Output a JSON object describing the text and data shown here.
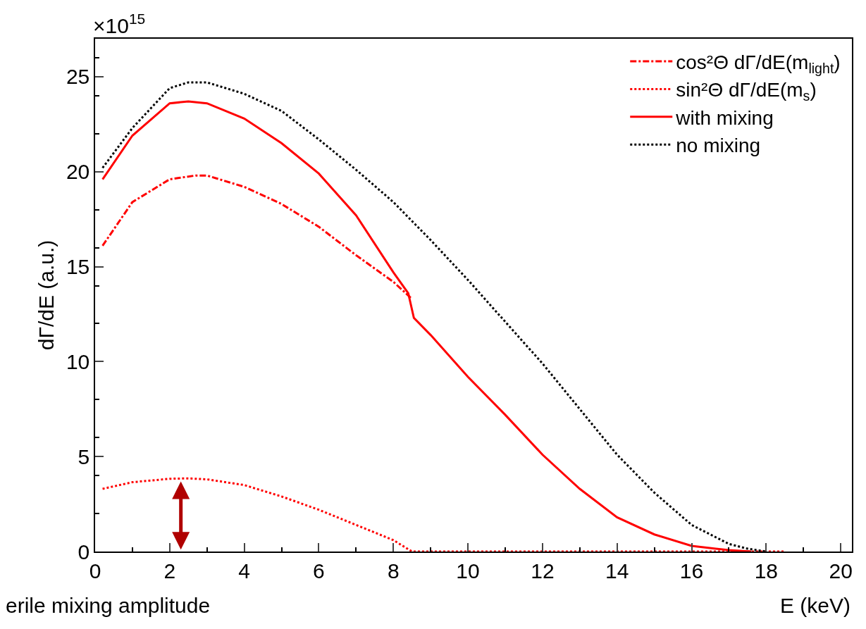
{
  "chart_data": {
    "type": "line",
    "xlabel": "E (keV)",
    "ylabel": "dΓ/dE (a.u.)",
    "xlim": [
      0,
      20.3
    ],
    "ylim": [
      0,
      27
    ],
    "xticks": [
      0,
      2,
      4,
      6,
      8,
      10,
      12,
      14,
      16,
      18,
      20
    ],
    "yticks": [
      0,
      5,
      10,
      15,
      20,
      25
    ],
    "legend": "top right",
    "marker": "none",
    "annotations": [
      "×10$^{15}$",
      "erile mixing amplitude"
    ],
    "series": [
      {
        "name": "cos²Θ dΓ/dE(m$_{light}$)",
        "color": "#ff0000",
        "line_style": "dashdot",
        "x": [
          0.2,
          1,
          2,
          2.7,
          3,
          4,
          5,
          6,
          7,
          8,
          8.5
        ],
        "values": [
          16.1,
          18.4,
          19.6,
          19.8,
          19.8,
          19.2,
          18.3,
          17.1,
          15.6,
          14.2,
          13.3
        ]
      },
      {
        "name": "sin²Θ dΓ/dE(m$_{s}$)",
        "color": "#ff0000",
        "line_style": "dotted",
        "x": [
          0.2,
          1,
          2,
          2.5,
          3,
          4,
          5,
          6,
          7,
          8,
          8.5,
          8.6,
          18.5
        ],
        "values": [
          3.3,
          3.65,
          3.83,
          3.85,
          3.8,
          3.5,
          2.9,
          2.2,
          1.4,
          0.6,
          0,
          0,
          0
        ]
      },
      {
        "name": "with mixing",
        "color": "#ff0000",
        "line_style": "solid",
        "x": [
          0.2,
          1,
          2,
          2.5,
          3,
          4,
          5,
          6,
          7,
          8,
          8.4,
          8.55,
          9,
          10,
          11,
          12,
          13,
          14,
          15,
          16,
          17,
          17.6
        ],
        "values": [
          19.6,
          21.9,
          23.6,
          23.7,
          23.6,
          22.8,
          21.5,
          19.9,
          17.7,
          14.7,
          13.6,
          12.3,
          11.4,
          9.2,
          7.2,
          5.1,
          3.3,
          1.8,
          0.9,
          0.3,
          0.07,
          0
        ]
      },
      {
        "name": "no mixing",
        "color": "#000000",
        "line_style": "dotted",
        "x": [
          0.2,
          1,
          2,
          2.5,
          3,
          4,
          5,
          6,
          7,
          8,
          9,
          10,
          11,
          12,
          13,
          14,
          15,
          16,
          17,
          17.5,
          18
        ],
        "values": [
          20.2,
          22.3,
          24.4,
          24.7,
          24.7,
          24.1,
          23.2,
          21.7,
          20.1,
          18.4,
          16.4,
          14.3,
          12.1,
          9.9,
          7.5,
          5.1,
          3.1,
          1.4,
          0.4,
          0.15,
          0
        ]
      }
    ]
  }
}
